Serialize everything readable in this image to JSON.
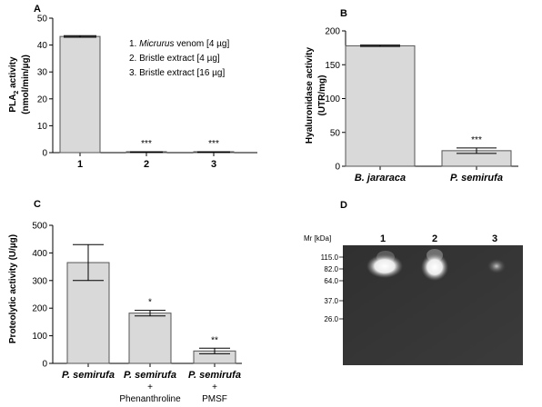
{
  "chart_data": [
    {
      "panel": "A",
      "type": "bar",
      "ylabel_main": "PLA",
      "ylabel_sub": "2",
      "ylabel_rest": " activity",
      "ylabel_unit": "(nmol/min/µg)",
      "categories": [
        "1",
        "2",
        "3"
      ],
      "values": [
        43.2,
        0.2,
        0.2
      ],
      "errors": [
        0.3,
        0.1,
        0.1
      ],
      "significance": [
        "",
        "***",
        "***"
      ],
      "ylim": [
        0,
        50
      ],
      "yticks": [
        0,
        10,
        20,
        30,
        40,
        50
      ],
      "legend": [
        {
          "num": "1. ",
          "italic": "Micrurus",
          "rest": " venom [4 µg]"
        },
        {
          "num": "2. ",
          "italic": "",
          "rest": "Bristle extract [4 µg]"
        },
        {
          "num": "3. ",
          "italic": "",
          "rest": "Bristle extract [16 µg]"
        }
      ]
    },
    {
      "panel": "B",
      "type": "bar",
      "ylabel": "Hyaluronidase activity",
      "ylabel_unit": "(UTR/mg)",
      "categories": [
        "B. jararaca",
        "P. semirufa"
      ],
      "values": [
        178,
        23
      ],
      "errors": [
        1,
        4
      ],
      "significance": [
        "",
        "***"
      ],
      "ylim": [
        0,
        200
      ],
      "yticks": [
        0,
        50,
        100,
        150,
        200
      ]
    },
    {
      "panel": "C",
      "type": "bar",
      "ylabel": "Proteolytic activity (U/µg)",
      "categories": [
        {
          "line1": "P. semirufa",
          "line2": "",
          "line3": ""
        },
        {
          "line1": "P. semirufa",
          "line2": "+",
          "line3": "Phenanthroline"
        },
        {
          "line1": "P. semirufa",
          "line2": "+",
          "line3": "PMSF"
        }
      ],
      "values": [
        365,
        182,
        45
      ],
      "errors": [
        65,
        10,
        10
      ],
      "significance": [
        "",
        "*",
        "**"
      ],
      "ylim": [
        0,
        500
      ],
      "yticks": [
        0,
        100,
        200,
        300,
        400,
        500
      ]
    }
  ],
  "gel": {
    "panel": "D",
    "mr_label": "Mr [kDa]",
    "markers": [
      "115.0",
      "82.0",
      "64.0",
      "37.0",
      "26.0"
    ],
    "lanes": [
      "1",
      "2",
      "3"
    ]
  }
}
